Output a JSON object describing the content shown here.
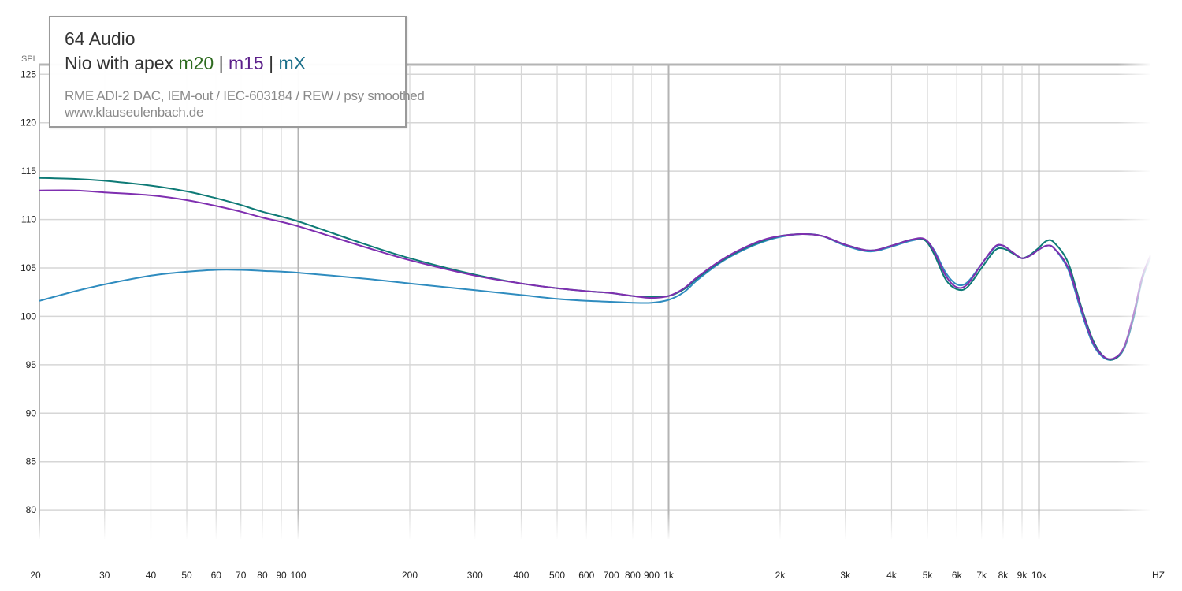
{
  "legend": {
    "brand": "64 Audio",
    "model": "Nio with apex",
    "separator": "|",
    "setup": "RME ADI-2 DAC, IEM-out / IEC-603184 / REW / psy smoothed",
    "website": "www.klauseulenbach.de"
  },
  "colors": {
    "m20": "#0e7a76",
    "m15": "#7f2fb0",
    "mX": "#2f8cbf",
    "m20_label": "#2d6a1f",
    "m15_label": "#5b1f8a",
    "mX_label": "#1b6f8a",
    "grid": "#d6d6d6",
    "grid_major": "#b4b4b4"
  },
  "chart_data": {
    "type": "line",
    "x_scale": "log",
    "xlabel": "HZ",
    "ylabel": "SPL",
    "xlim": [
      20,
      20000
    ],
    "ylim": [
      77,
      126
    ],
    "grid": true,
    "x_ticks": [
      {
        "v": 20,
        "label": "20"
      },
      {
        "v": 30,
        "label": "30"
      },
      {
        "v": 40,
        "label": "40"
      },
      {
        "v": 50,
        "label": "50"
      },
      {
        "v": 60,
        "label": "60"
      },
      {
        "v": 70,
        "label": "70"
      },
      {
        "v": 80,
        "label": "80"
      },
      {
        "v": 90,
        "label": "90"
      },
      {
        "v": 100,
        "label": "100"
      },
      {
        "v": 200,
        "label": "200"
      },
      {
        "v": 300,
        "label": "300"
      },
      {
        "v": 400,
        "label": "400"
      },
      {
        "v": 500,
        "label": "500"
      },
      {
        "v": 600,
        "label": "600"
      },
      {
        "v": 700,
        "label": "700"
      },
      {
        "v": 800,
        "label": "800"
      },
      {
        "v": 900,
        "label": "900"
      },
      {
        "v": 1000,
        "label": "1k"
      },
      {
        "v": 2000,
        "label": "2k"
      },
      {
        "v": 3000,
        "label": "3k"
      },
      {
        "v": 4000,
        "label": "4k"
      },
      {
        "v": 5000,
        "label": "5k"
      },
      {
        "v": 6000,
        "label": "6k"
      },
      {
        "v": 7000,
        "label": "7k"
      },
      {
        "v": 8000,
        "label": "8k"
      },
      {
        "v": 9000,
        "label": "9k"
      },
      {
        "v": 10000,
        "label": "10k"
      }
    ],
    "y_ticks": [
      80,
      85,
      90,
      95,
      100,
      105,
      110,
      115,
      120,
      125
    ],
    "series": [
      {
        "name": "m20",
        "points": [
          [
            20,
            114.3
          ],
          [
            25,
            114.2
          ],
          [
            30,
            114.0
          ],
          [
            40,
            113.5
          ],
          [
            50,
            112.9
          ],
          [
            60,
            112.2
          ],
          [
            70,
            111.5
          ],
          [
            80,
            110.8
          ],
          [
            100,
            109.8
          ],
          [
            150,
            107.5
          ],
          [
            200,
            106.0
          ],
          [
            300,
            104.3
          ],
          [
            400,
            103.4
          ],
          [
            500,
            102.9
          ],
          [
            600,
            102.6
          ],
          [
            700,
            102.4
          ],
          [
            800,
            102.1
          ],
          [
            900,
            102.0
          ],
          [
            1000,
            102.1
          ],
          [
            1100,
            102.8
          ],
          [
            1200,
            104.0
          ],
          [
            1400,
            105.8
          ],
          [
            1600,
            107.0
          ],
          [
            1800,
            107.8
          ],
          [
            2000,
            108.3
          ],
          [
            2300,
            108.5
          ],
          [
            2600,
            108.3
          ],
          [
            3000,
            107.4
          ],
          [
            3500,
            106.8
          ],
          [
            4000,
            107.3
          ],
          [
            4500,
            107.9
          ],
          [
            4900,
            107.9
          ],
          [
            5200,
            106.5
          ],
          [
            5600,
            103.8
          ],
          [
            6000,
            102.8
          ],
          [
            6400,
            103.0
          ],
          [
            7000,
            105.0
          ],
          [
            7600,
            106.8
          ],
          [
            8000,
            107.0
          ],
          [
            8500,
            106.5
          ],
          [
            9000,
            106.0
          ],
          [
            9500,
            106.4
          ],
          [
            10000,
            107.1
          ],
          [
            10500,
            107.8
          ],
          [
            11000,
            107.6
          ],
          [
            12000,
            105.5
          ],
          [
            13000,
            101.0
          ],
          [
            14000,
            97.5
          ],
          [
            15000,
            95.8
          ],
          [
            16000,
            95.6
          ],
          [
            17000,
            96.8
          ],
          [
            18000,
            100.0
          ],
          [
            19000,
            104.0
          ],
          [
            20000,
            106.2
          ]
        ]
      },
      {
        "name": "m15",
        "points": [
          [
            20,
            113.0
          ],
          [
            25,
            113.0
          ],
          [
            30,
            112.8
          ],
          [
            40,
            112.5
          ],
          [
            50,
            112.0
          ],
          [
            60,
            111.4
          ],
          [
            70,
            110.8
          ],
          [
            80,
            110.2
          ],
          [
            100,
            109.3
          ],
          [
            150,
            107.2
          ],
          [
            200,
            105.8
          ],
          [
            300,
            104.2
          ],
          [
            400,
            103.4
          ],
          [
            500,
            102.9
          ],
          [
            600,
            102.6
          ],
          [
            700,
            102.4
          ],
          [
            800,
            102.1
          ],
          [
            900,
            101.9
          ],
          [
            1000,
            102.1
          ],
          [
            1100,
            102.9
          ],
          [
            1200,
            104.1
          ],
          [
            1400,
            105.9
          ],
          [
            1600,
            107.1
          ],
          [
            1800,
            107.9
          ],
          [
            2000,
            108.3
          ],
          [
            2300,
            108.5
          ],
          [
            2600,
            108.3
          ],
          [
            3000,
            107.4
          ],
          [
            3500,
            106.8
          ],
          [
            4000,
            107.3
          ],
          [
            4500,
            107.9
          ],
          [
            4900,
            108.0
          ],
          [
            5200,
            106.8
          ],
          [
            5600,
            104.2
          ],
          [
            6000,
            103.0
          ],
          [
            6400,
            103.3
          ],
          [
            7000,
            105.4
          ],
          [
            7600,
            107.2
          ],
          [
            8000,
            107.3
          ],
          [
            8500,
            106.6
          ],
          [
            9000,
            106.0
          ],
          [
            9500,
            106.3
          ],
          [
            10000,
            106.9
          ],
          [
            10500,
            107.3
          ],
          [
            11000,
            107.0
          ],
          [
            12000,
            105.0
          ],
          [
            13000,
            100.8
          ],
          [
            14000,
            97.3
          ],
          [
            15000,
            95.8
          ],
          [
            16000,
            95.7
          ],
          [
            17000,
            96.9
          ],
          [
            18000,
            100.2
          ],
          [
            19000,
            104.1
          ],
          [
            20000,
            106.3
          ]
        ]
      },
      {
        "name": "mX",
        "points": [
          [
            20,
            101.6
          ],
          [
            25,
            102.6
          ],
          [
            30,
            103.3
          ],
          [
            40,
            104.2
          ],
          [
            50,
            104.6
          ],
          [
            60,
            104.8
          ],
          [
            70,
            104.8
          ],
          [
            80,
            104.7
          ],
          [
            100,
            104.5
          ],
          [
            150,
            103.9
          ],
          [
            200,
            103.4
          ],
          [
            300,
            102.7
          ],
          [
            400,
            102.2
          ],
          [
            500,
            101.8
          ],
          [
            600,
            101.6
          ],
          [
            700,
            101.5
          ],
          [
            800,
            101.4
          ],
          [
            900,
            101.4
          ],
          [
            1000,
            101.7
          ],
          [
            1100,
            102.5
          ],
          [
            1200,
            103.8
          ],
          [
            1400,
            105.7
          ],
          [
            1600,
            106.9
          ],
          [
            1800,
            107.7
          ],
          [
            2000,
            108.2
          ],
          [
            2300,
            108.5
          ],
          [
            2600,
            108.3
          ],
          [
            3000,
            107.3
          ],
          [
            3500,
            106.7
          ],
          [
            4000,
            107.2
          ],
          [
            4500,
            107.8
          ],
          [
            4900,
            107.9
          ],
          [
            5200,
            106.9
          ],
          [
            5600,
            104.5
          ],
          [
            6000,
            103.3
          ],
          [
            6400,
            103.5
          ],
          [
            7000,
            105.4
          ],
          [
            7600,
            107.1
          ],
          [
            8000,
            107.3
          ],
          [
            8500,
            106.6
          ],
          [
            9000,
            106.0
          ],
          [
            9500,
            106.3
          ],
          [
            10000,
            106.9
          ],
          [
            10500,
            107.3
          ],
          [
            11000,
            107.0
          ],
          [
            12000,
            104.8
          ],
          [
            13000,
            100.5
          ],
          [
            14000,
            97.1
          ],
          [
            15000,
            95.7
          ],
          [
            16000,
            95.6
          ],
          [
            17000,
            96.7
          ],
          [
            18000,
            99.8
          ],
          [
            19000,
            103.8
          ],
          [
            20000,
            106.0
          ]
        ]
      }
    ]
  }
}
